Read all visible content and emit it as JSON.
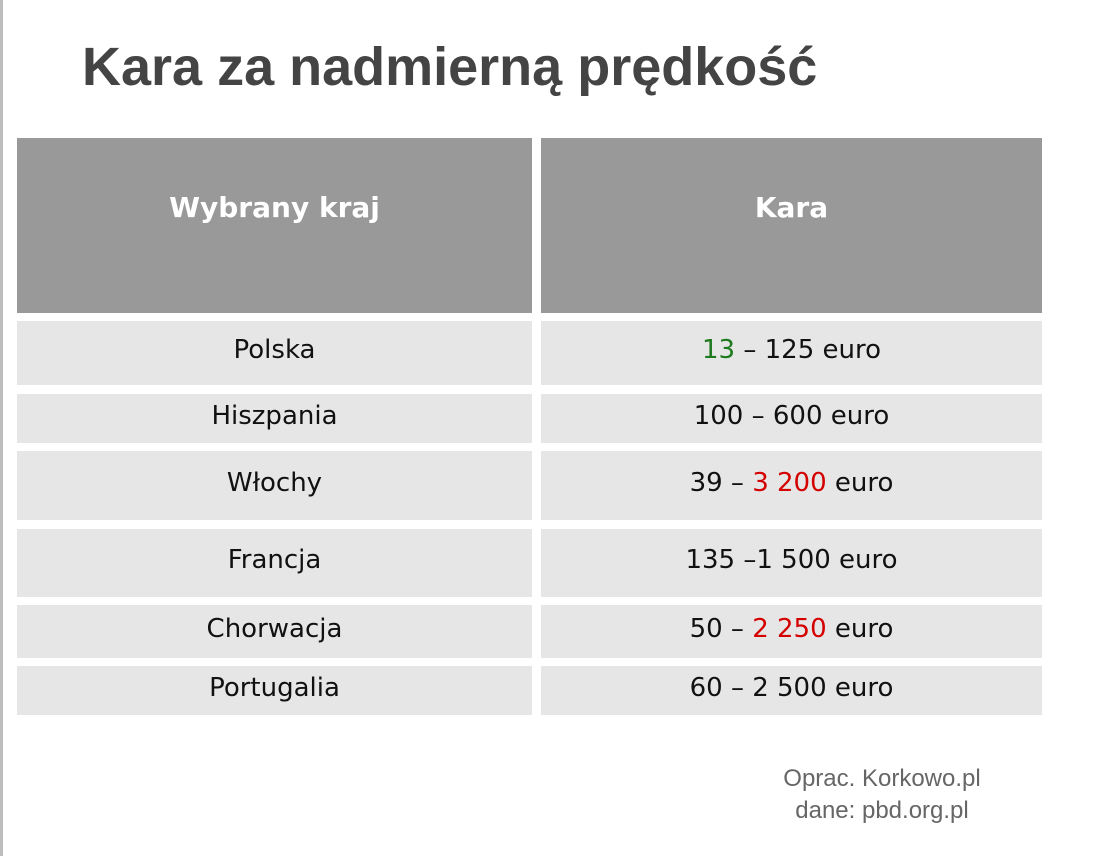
{
  "title": "Kara za nadmierną prędkość",
  "table": {
    "header": [
      "Wybrany kraj",
      "Kara"
    ],
    "rows": [
      {
        "country": "Polska",
        "penalty": [
          {
            "text": "13",
            "color": "#1e7a1e"
          },
          {
            "text": " – 125 euro"
          }
        ]
      },
      {
        "country": "Hiszpania",
        "penalty": [
          {
            "text": "100 – 600 euro"
          }
        ]
      },
      {
        "country": "Włochy",
        "penalty": [
          {
            "text": "39 – "
          },
          {
            "text": "3 200",
            "color": "#d40000"
          },
          {
            "text": " euro"
          }
        ]
      },
      {
        "country": "Francja",
        "penalty": [
          {
            "text": "135 –1 500 euro"
          }
        ]
      },
      {
        "country": "Chorwacja",
        "penalty": [
          {
            "text": "50 – "
          },
          {
            "text": "2 250",
            "color": "#d40000"
          },
          {
            "text": " euro"
          }
        ]
      },
      {
        "country": "Portugalia",
        "penalty": [
          {
            "text": "60 – 2 500 euro"
          }
        ]
      }
    ]
  },
  "footer": [
    "Oprac. Korkowo.pl",
    "dane: pbd.org.pl"
  ]
}
